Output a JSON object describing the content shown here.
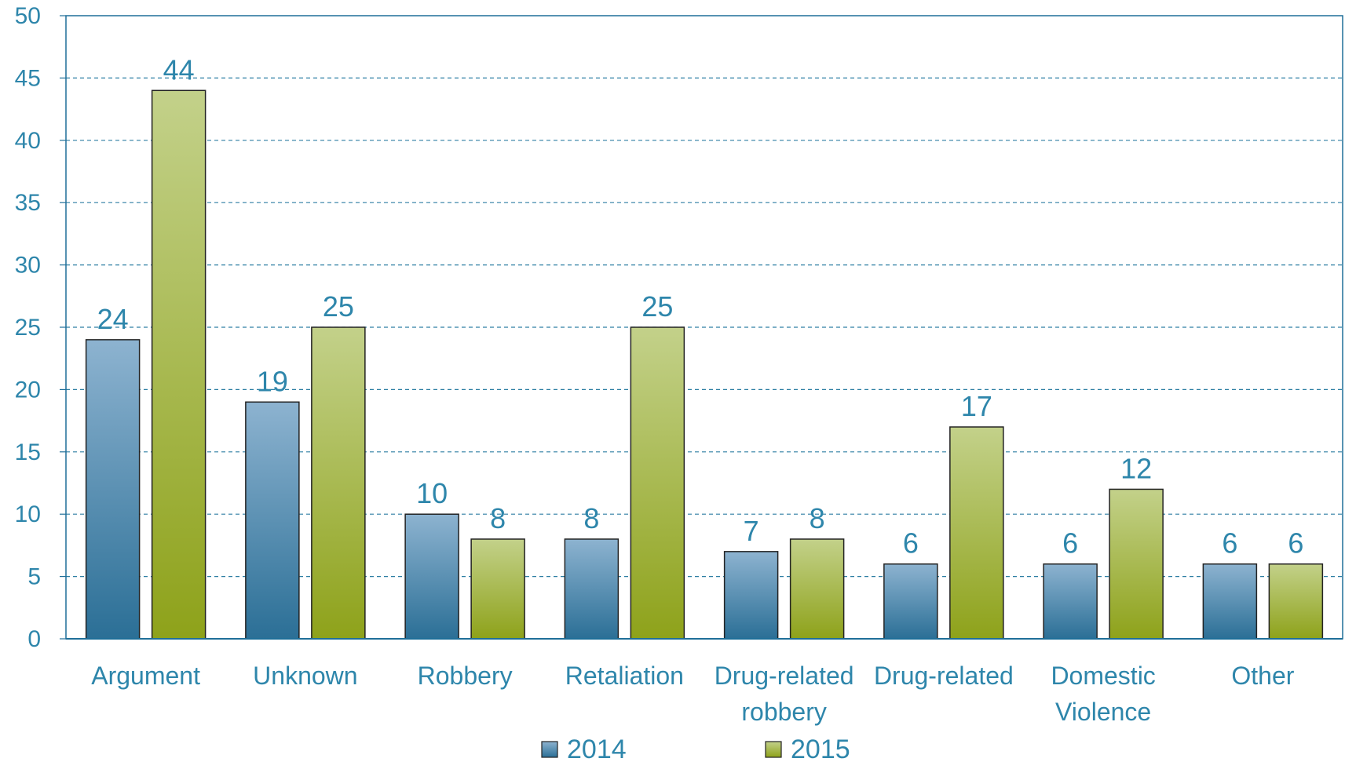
{
  "colors": {
    "axis_text": "#2e86ab",
    "grid": "#2e7fa3",
    "plot_border": "#1f6f99",
    "series_2014_top": "#8db3d0",
    "series_2014_bottom": "#2b6f96",
    "series_2015_top": "#c3d18a",
    "series_2015_bottom": "#8ea21a",
    "bar_outline": "#222222"
  },
  "chart_data": {
    "type": "bar",
    "categories": [
      [
        "Argument"
      ],
      [
        "Unknown"
      ],
      [
        "Robbery"
      ],
      [
        "Retaliation"
      ],
      [
        "Drug-related",
        "robbery"
      ],
      [
        "Drug-related"
      ],
      [
        "Domestic",
        "Violence"
      ],
      [
        "Other"
      ]
    ],
    "series": [
      {
        "name": "2014",
        "values": [
          24,
          19,
          10,
          8,
          7,
          6,
          6,
          6
        ]
      },
      {
        "name": "2015",
        "values": [
          44,
          25,
          8,
          25,
          8,
          17,
          12,
          6
        ]
      }
    ],
    "ylim": [
      0,
      50
    ],
    "yticks": [
      0,
      5,
      10,
      15,
      20,
      25,
      30,
      35,
      40,
      45,
      50
    ],
    "grid": true,
    "legend_position": "bottom-center",
    "title": "",
    "xlabel": "",
    "ylabel": ""
  }
}
